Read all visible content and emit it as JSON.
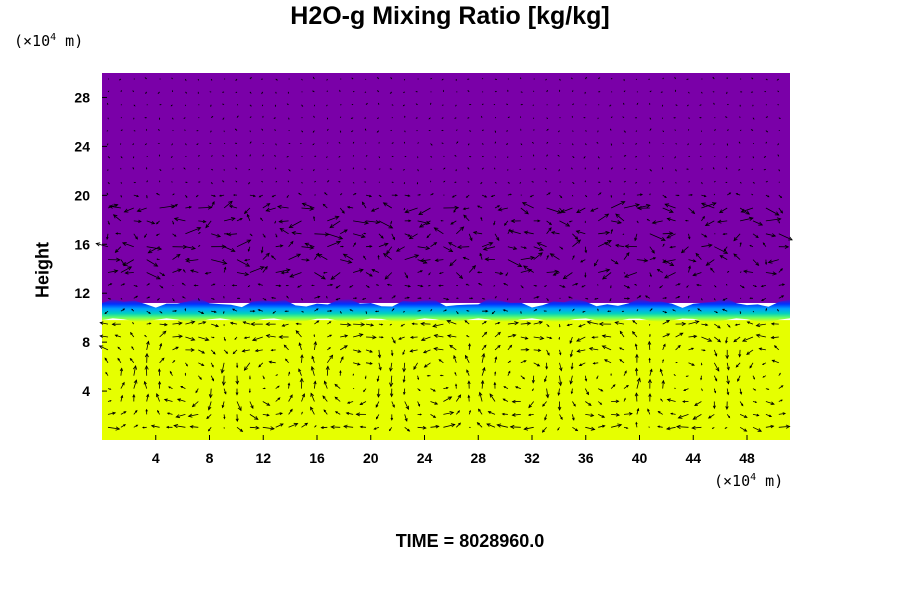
{
  "title": "H2O-g Mixing Ratio [kg/kg]",
  "y_unit": {
    "prefix": "(×10",
    "exp": "4",
    "suffix": " m)"
  },
  "x_unit": {
    "prefix": "(×10",
    "exp": "4",
    "suffix": " m)"
  },
  "ylabel": "Height",
  "time_label": "TIME = 8028960.0",
  "chart_data": {
    "type": "heatmap",
    "title": "H2O-g Mixing Ratio [kg/kg]",
    "xlabel": "",
    "ylabel": "Height",
    "x_ticks": [
      4,
      8,
      12,
      16,
      20,
      24,
      28,
      32,
      36,
      40,
      44,
      48
    ],
    "y_ticks": [
      4,
      8,
      12,
      16,
      20,
      24,
      28
    ],
    "xlim": [
      0,
      51.2
    ],
    "ylim": [
      0,
      30
    ],
    "field": {
      "lower_layer": {
        "y_range": [
          0,
          9.8
        ],
        "color": "#e6ff00"
      },
      "transition": {
        "y_range": [
          9.8,
          11.2
        ],
        "colors": [
          "#00d4a0",
          "#00a8ff",
          "#0044ff",
          "#1a0090"
        ]
      },
      "upper_layer": {
        "y_range": [
          11.2,
          30
        ],
        "color": "#7a00a8"
      }
    },
    "overlay": "wind vectors",
    "grid": false
  }
}
